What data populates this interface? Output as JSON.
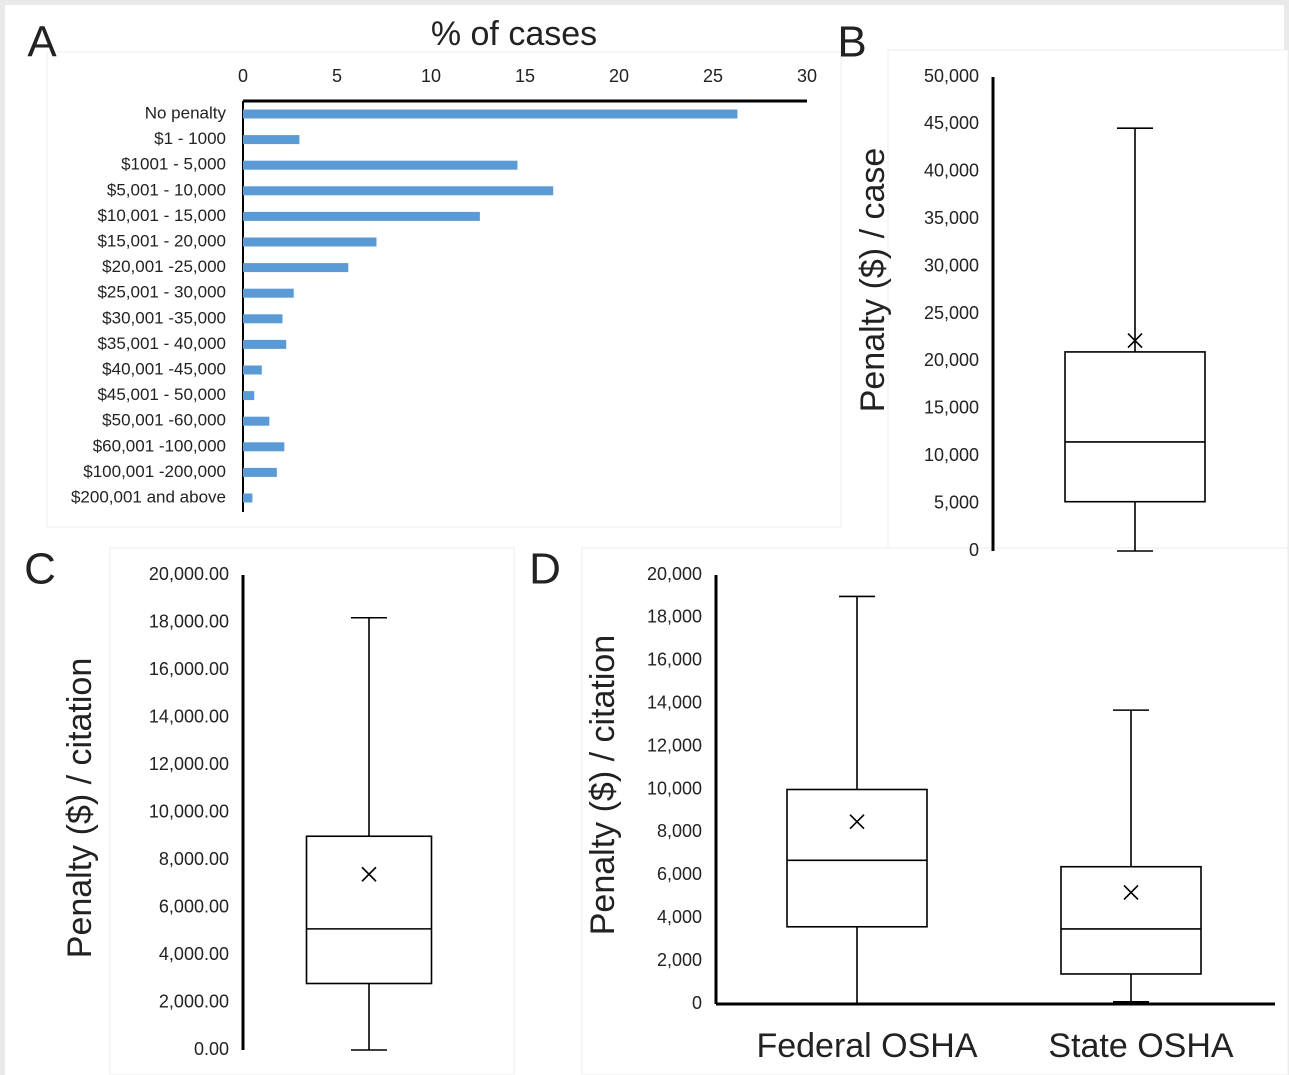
{
  "chart_data": [
    {
      "type": "bar",
      "panel": "A",
      "title": "% of cases",
      "orientation": "horizontal",
      "color": "#5b9bd5",
      "categories": [
        "No penalty",
        "$1 - 1000",
        "$1001 - 5,000",
        "$5,001 - 10,000",
        "$10,001 - 15,000",
        "$15,001 - 20,000",
        "$20,001 -25,000",
        "$25,001 - 30,000",
        "$30,001 -35,000",
        "$35,001 - 40,000",
        "$40,001 -45,000",
        "$45,001 - 50,000",
        "$50,001 -60,000",
        "$60,001 -100,000",
        "$100,001 -200,000",
        "$200,001 and above"
      ],
      "values": [
        26.3,
        3.0,
        14.6,
        16.5,
        12.6,
        7.1,
        5.6,
        2.7,
        2.1,
        2.3,
        1.0,
        0.6,
        1.4,
        2.2,
        1.8,
        0.5
      ],
      "xlim": [
        0,
        30
      ],
      "xticks": [
        0,
        5,
        10,
        15,
        20,
        25,
        30
      ],
      "grid": false
    },
    {
      "type": "box",
      "panel": "B",
      "y_label": "Penalty ($) / case",
      "categories": [
        null
      ],
      "min": [
        0
      ],
      "q1": [
        5200
      ],
      "median": [
        11500
      ],
      "q3": [
        21000
      ],
      "max": [
        44600
      ],
      "mean": [
        22200
      ],
      "ylim": [
        0,
        50000
      ],
      "yticks": [
        0,
        {
          "value": 5000,
          "label": "5,000"
        },
        {
          "value": 10000,
          "label": "10,000"
        },
        {
          "value": 15000,
          "label": "15,000"
        },
        {
          "value": 20000,
          "label": "20,000"
        },
        {
          "value": 25000,
          "label": "25,000"
        },
        {
          "value": 30000,
          "label": "30,000"
        },
        {
          "value": 35000,
          "label": "35,000"
        },
        {
          "value": 40000,
          "label": "40,000"
        },
        {
          "value": 45000,
          "label": "45,000"
        },
        {
          "value": 50000,
          "label": "50,000"
        }
      ],
      "grid": false
    },
    {
      "type": "box",
      "panel": "C",
      "y_label": "Penalty ($) / citation",
      "categories": [
        null
      ],
      "min": [
        0
      ],
      "q1": [
        2800
      ],
      "median": [
        5100
      ],
      "q3": [
        9000
      ],
      "max": [
        18200
      ],
      "mean": [
        7400
      ],
      "ylim": [
        0,
        20000
      ],
      "yticks": [
        {
          "value": 0,
          "label": "0.00"
        },
        {
          "value": 2000,
          "label": "2,000.00"
        },
        {
          "value": 4000,
          "label": "4,000.00"
        },
        {
          "value": 6000,
          "label": "6,000.00"
        },
        {
          "value": 8000,
          "label": "8,000.00"
        },
        {
          "value": 10000,
          "label": "10,000.00"
        },
        {
          "value": 12000,
          "label": "12,000.00"
        },
        {
          "value": 14000,
          "label": "14,000.00"
        },
        {
          "value": 16000,
          "label": "16,000.00"
        },
        {
          "value": 18000,
          "label": "18,000.00"
        },
        {
          "value": 20000,
          "label": "20,000.00"
        }
      ],
      "grid": false
    },
    {
      "type": "box",
      "panel": "D",
      "y_label": "Penalty ($) / citation",
      "categories": [
        "Federal OSHA",
        "State OSHA"
      ],
      "min": [
        0,
        100
      ],
      "q1": [
        3600,
        1400
      ],
      "median": [
        6700,
        3500
      ],
      "q3": [
        10000,
        6400
      ],
      "max": [
        19000,
        13700
      ],
      "mean": [
        8500,
        5200
      ],
      "ylim": [
        0,
        20000
      ],
      "yticks": [
        0,
        {
          "value": 2000,
          "label": "2,000"
        },
        {
          "value": 4000,
          "label": "4,000"
        },
        {
          "value": 6000,
          "label": "6,000"
        },
        {
          "value": 8000,
          "label": "8,000"
        },
        {
          "value": 10000,
          "label": "10,000"
        },
        {
          "value": 12000,
          "label": "12,000"
        },
        {
          "value": 14000,
          "label": "14,000"
        },
        {
          "value": 16000,
          "label": "16,000"
        },
        {
          "value": 18000,
          "label": "18,000"
        },
        {
          "value": 20000,
          "label": "20,000"
        }
      ],
      "grid": false
    }
  ]
}
